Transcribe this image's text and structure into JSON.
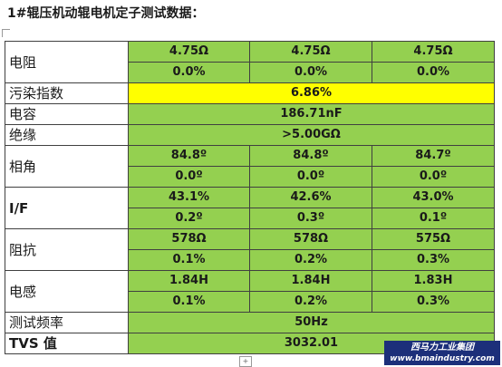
{
  "title": "1#辊压机动辊电机定子测试数据：",
  "rows": {
    "resistance": {
      "label": "电阻",
      "values": [
        "4.75Ω",
        "4.75Ω",
        "4.75Ω"
      ],
      "deviations": [
        "0.0%",
        "0.0%",
        "0.0%"
      ]
    },
    "pollution": {
      "label": "污染指数",
      "value": "6.86%"
    },
    "capacitance": {
      "label": "电容",
      "value": "186.71nF"
    },
    "insulation": {
      "label": "绝缘",
      "value": ">5.00GΩ"
    },
    "phase_angle": {
      "label": "相角",
      "values": [
        "84.8º",
        "84.8º",
        "84.7º"
      ],
      "deviations": [
        "0.0º",
        "0.0º",
        "0.0º"
      ]
    },
    "i_f": {
      "label": "I/F",
      "values": [
        "43.1%",
        "42.6%",
        "43.0%"
      ],
      "deviations": [
        "0.2º",
        "0.3º",
        "0.1º"
      ]
    },
    "impedance": {
      "label": "阻抗",
      "values": [
        "578Ω",
        "578Ω",
        "575Ω"
      ],
      "deviations": [
        "0.1%",
        "0.2%",
        "0.3%"
      ]
    },
    "inductance": {
      "label": "电感",
      "values": [
        "1.84H",
        "1.84H",
        "1.83H"
      ],
      "deviations": [
        "0.1%",
        "0.2%",
        "0.3%"
      ]
    },
    "test_frequency": {
      "label": "测试频率",
      "value": "50Hz"
    },
    "tvs": {
      "label": "TVS 值",
      "value": "3032.01"
    }
  },
  "watermark": {
    "company": "西马力工业集团",
    "url": "www.bmaindustry.com"
  },
  "colors": {
    "cell_green": "#94d050",
    "cell_yellow": "#ffff00",
    "watermark_bg": "#1c2f7a"
  }
}
